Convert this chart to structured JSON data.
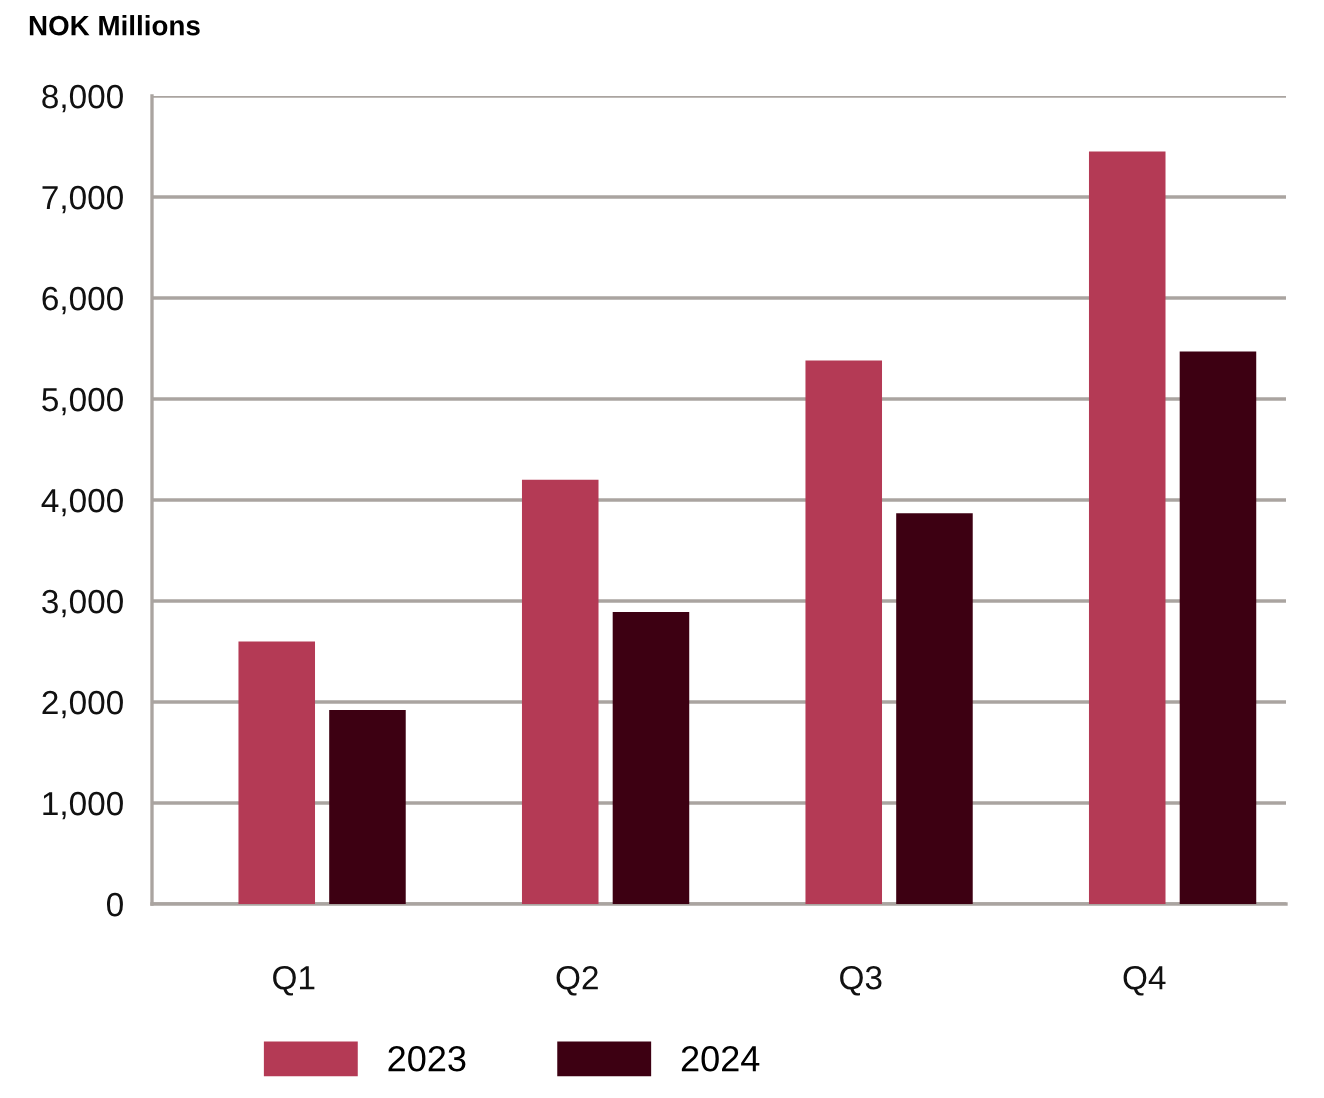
{
  "chart_data": {
    "type": "bar",
    "title": "NOK Millions",
    "categories": [
      "Q1",
      "Q2",
      "Q3",
      "Q4"
    ],
    "series": [
      {
        "name": "2023",
        "color": "#b43a55",
        "values": [
          2600,
          4200,
          5380,
          7450
        ]
      },
      {
        "name": "2024",
        "color": "#3d0012",
        "values": [
          1920,
          2890,
          3870,
          5470
        ]
      }
    ],
    "ylim": [
      0,
      8000
    ],
    "yticks": [
      {
        "value": 0,
        "label": "0"
      },
      {
        "value": 1000,
        "label": "1,000"
      },
      {
        "value": 2000,
        "label": "2,000"
      },
      {
        "value": 3000,
        "label": "3,000"
      },
      {
        "value": 4000,
        "label": "4,000"
      },
      {
        "value": 5000,
        "label": "5,000"
      },
      {
        "value": 6000,
        "label": "6,000"
      },
      {
        "value": 7000,
        "label": "7,000"
      },
      {
        "value": 8000,
        "label": "8,000"
      }
    ],
    "grid": "y",
    "legend": "bottom"
  }
}
